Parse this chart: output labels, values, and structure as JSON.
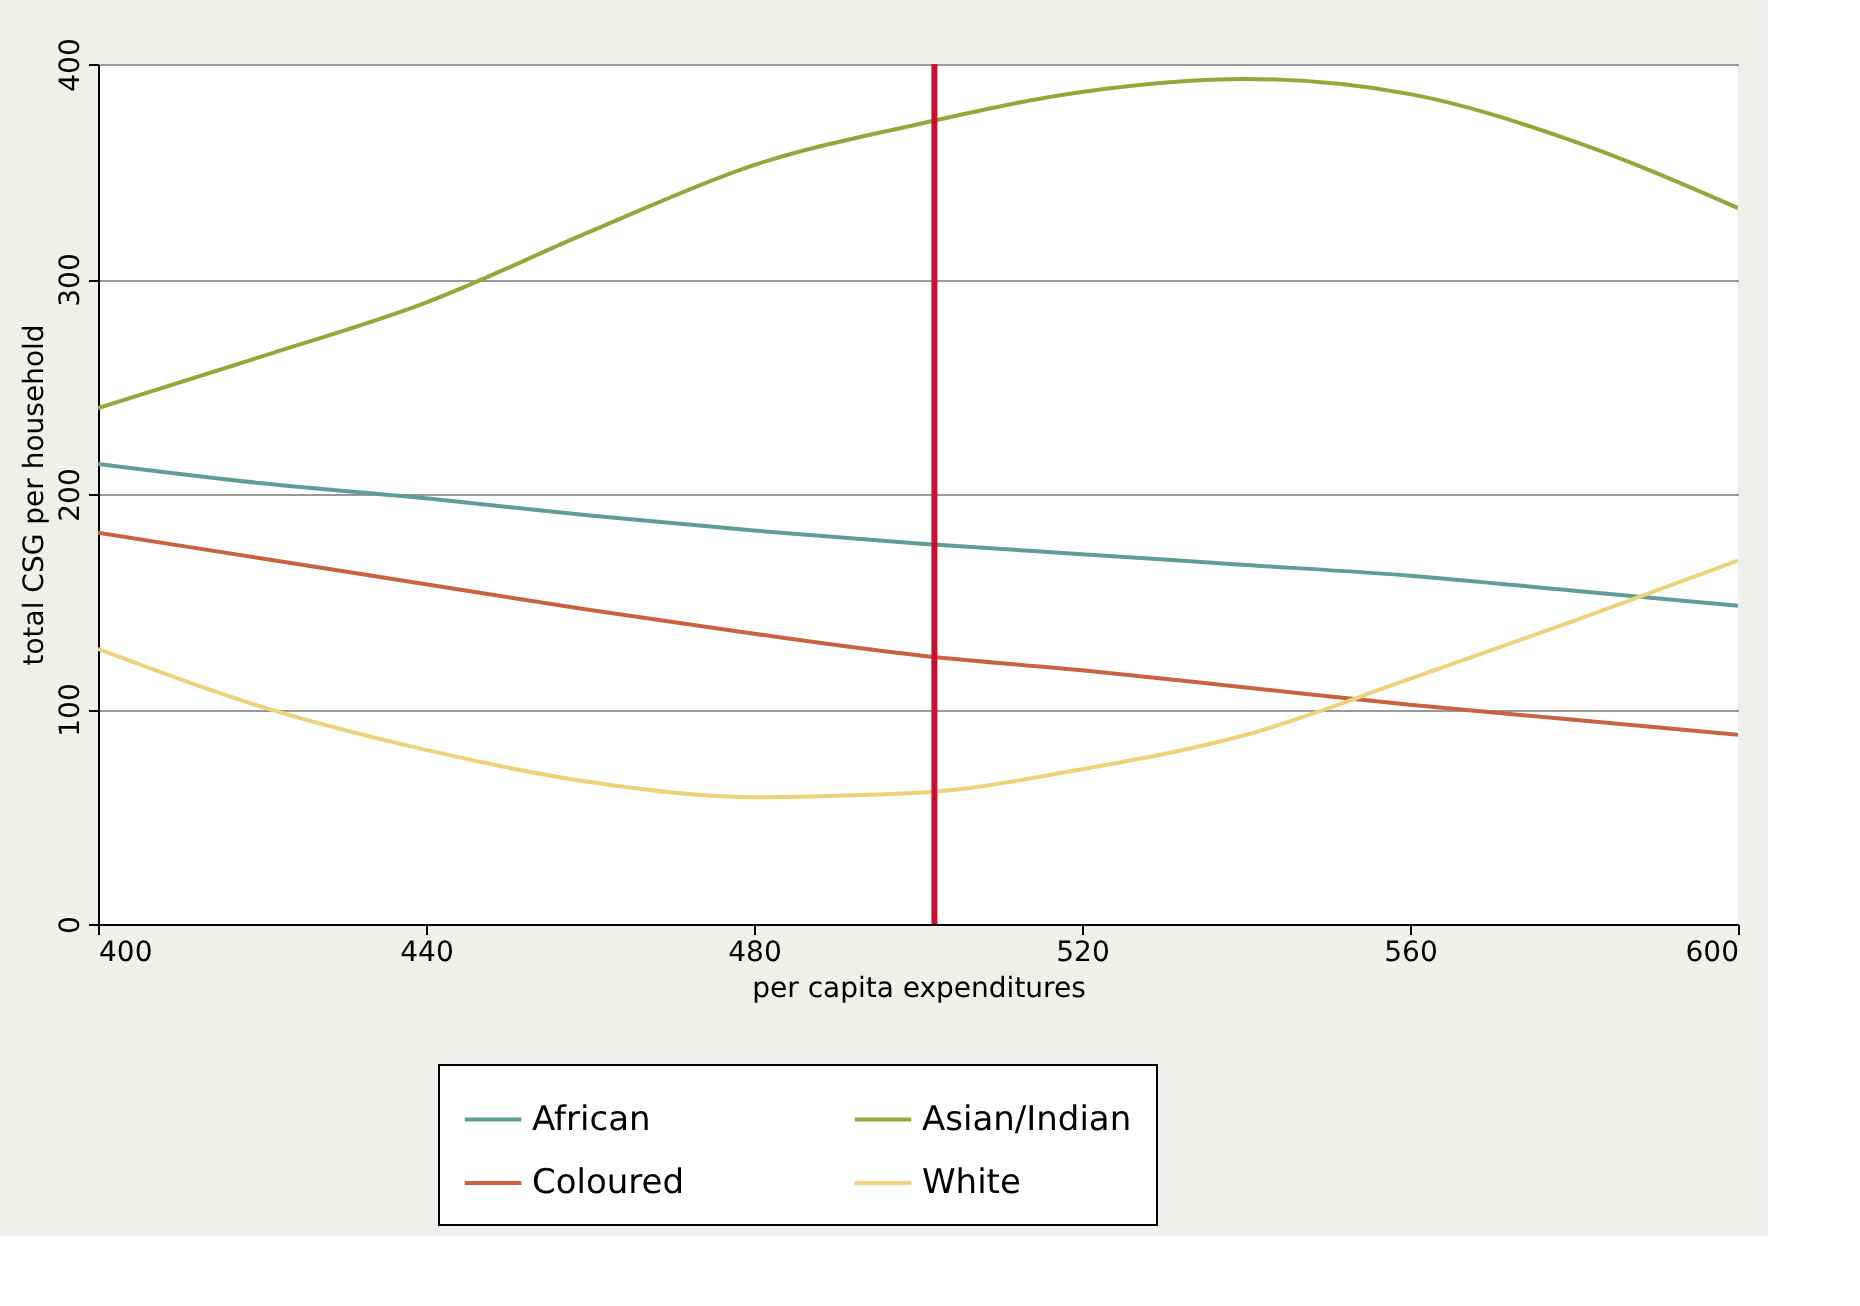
{
  "chart_data": {
    "type": "line",
    "xlabel": "per capita expenditures",
    "ylabel": "total CSG per household",
    "x": [
      400,
      420,
      440,
      460,
      480,
      500,
      520,
      540,
      560,
      580,
      600
    ],
    "xlim": [
      400,
      600
    ],
    "xticks": [
      400,
      440,
      480,
      520,
      560,
      600
    ],
    "ylim": [
      0,
      400
    ],
    "yticks": [
      0,
      100,
      200,
      300,
      400
    ],
    "grid": "y",
    "legend": "bottom",
    "marker": "none",
    "line_style": "solid",
    "series": [
      {
        "name": "African",
        "color": "#5f9e98",
        "values": [
          214,
          205,
          198,
          190,
          183,
          177,
          172,
          167,
          162,
          155,
          148
        ]
      },
      {
        "name": "Coloured",
        "color": "#c9623f",
        "values": [
          182,
          170,
          158,
          146,
          135,
          125,
          118,
          110,
          102,
          95,
          88
        ]
      },
      {
        "name": "Asian/Indian",
        "color": "#94a83a",
        "values": [
          240,
          264,
          289,
          322,
          353,
          372,
          387,
          393,
          386,
          364,
          333
        ]
      },
      {
        "name": "White",
        "color": "#ecd37a",
        "values": [
          128,
          101,
          81,
          66,
          59,
          61,
          72,
          88,
          114,
          141,
          169
        ]
      }
    ],
    "ref_lines": [
      {
        "axis": "x",
        "value": 502,
        "color": "#c8102e"
      }
    ]
  }
}
